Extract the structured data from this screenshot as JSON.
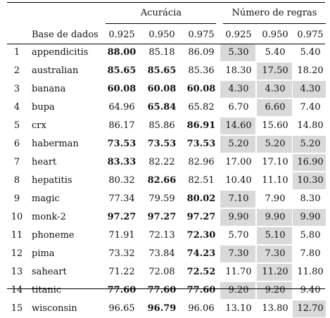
{
  "table": {
    "group_headers": {
      "accuracy": "Acurácia",
      "rules": "Número de regras"
    },
    "dataset_header": "Base de dados",
    "col_headers": [
      "0.925",
      "0.950",
      "0.975",
      "0.925",
      "0.950",
      "0.975"
    ],
    "shade_color": "#d9d9d9",
    "rows": [
      {
        "idx": "1",
        "name": "appendicitis",
        "vals": [
          "88.00",
          "85.18",
          "86.09",
          "5.30",
          "5.40",
          "5.40"
        ],
        "bold": [
          true,
          false,
          false
        ],
        "shade": [
          true,
          false,
          false
        ]
      },
      {
        "idx": "2",
        "name": "australian",
        "vals": [
          "85.65",
          "85.65",
          "85.36",
          "18.30",
          "17.50",
          "18.20"
        ],
        "bold": [
          true,
          true,
          false
        ],
        "shade": [
          false,
          true,
          false
        ]
      },
      {
        "idx": "3",
        "name": "banana",
        "vals": [
          "60.08",
          "60.08",
          "60.08",
          "4.30",
          "4.30",
          "4.30"
        ],
        "bold": [
          true,
          true,
          true
        ],
        "shade": [
          true,
          true,
          true
        ]
      },
      {
        "idx": "4",
        "name": "bupa",
        "vals": [
          "64.96",
          "65.84",
          "65.82",
          "6.70",
          "6.60",
          "7.40"
        ],
        "bold": [
          false,
          true,
          false
        ],
        "shade": [
          false,
          true,
          false
        ]
      },
      {
        "idx": "5",
        "name": "crx",
        "vals": [
          "86.17",
          "85.86",
          "86.91",
          "14.60",
          "15.60",
          "14.80"
        ],
        "bold": [
          false,
          false,
          true
        ],
        "shade": [
          true,
          false,
          false
        ]
      },
      {
        "idx": "6",
        "name": "haberman",
        "vals": [
          "73.53",
          "73.53",
          "73.53",
          "5.20",
          "5.20",
          "5.20"
        ],
        "bold": [
          true,
          true,
          true
        ],
        "shade": [
          true,
          true,
          true
        ]
      },
      {
        "idx": "7",
        "name": "heart",
        "vals": [
          "83.33",
          "82.22",
          "82.96",
          "17.00",
          "17.10",
          "16.90"
        ],
        "bold": [
          true,
          false,
          false
        ],
        "shade": [
          false,
          false,
          true
        ]
      },
      {
        "idx": "8",
        "name": "hepatitis",
        "vals": [
          "80.32",
          "82.66",
          "82.51",
          "10.40",
          "11.10",
          "10.30"
        ],
        "bold": [
          false,
          true,
          false
        ],
        "shade": [
          false,
          false,
          true
        ]
      },
      {
        "idx": "9",
        "name": "magic",
        "vals": [
          "77.34",
          "79.59",
          "80.02",
          "7.10",
          "7.90",
          "8.30"
        ],
        "bold": [
          false,
          false,
          true
        ],
        "shade": [
          true,
          false,
          false
        ]
      },
      {
        "idx": "10",
        "name": "monk-2",
        "vals": [
          "97.27",
          "97.27",
          "97.27",
          "9.90",
          "9.90",
          "9.90"
        ],
        "bold": [
          true,
          true,
          true
        ],
        "shade": [
          true,
          true,
          true
        ]
      },
      {
        "idx": "11",
        "name": "phoneme",
        "vals": [
          "71.91",
          "72.13",
          "72.30",
          "5.70",
          "5.10",
          "5.80"
        ],
        "bold": [
          false,
          false,
          true
        ],
        "shade": [
          false,
          true,
          false
        ]
      },
      {
        "idx": "12",
        "name": "pima",
        "vals": [
          "73.32",
          "73.84",
          "74.23",
          "7.30",
          "7.30",
          "7.80"
        ],
        "bold": [
          false,
          false,
          true
        ],
        "shade": [
          true,
          true,
          false
        ]
      },
      {
        "idx": "13",
        "name": "saheart",
        "vals": [
          "71.22",
          "72.08",
          "72.52",
          "11.70",
          "11.20",
          "11.80"
        ],
        "bold": [
          false,
          false,
          true
        ],
        "shade": [
          false,
          true,
          false
        ]
      },
      {
        "idx": "14",
        "name": "titanic",
        "vals": [
          "77.60",
          "77.60",
          "77.60",
          "9.20",
          "9.20",
          "9.40"
        ],
        "bold": [
          true,
          true,
          true
        ],
        "shade": [
          true,
          true,
          false
        ]
      },
      {
        "idx": "15",
        "name": "wisconsin",
        "vals": [
          "96.65",
          "96.79",
          "96.06",
          "13.10",
          "13.80",
          "12.70"
        ],
        "bold": [
          false,
          true,
          false
        ],
        "shade": [
          false,
          false,
          true
        ]
      }
    ]
  }
}
